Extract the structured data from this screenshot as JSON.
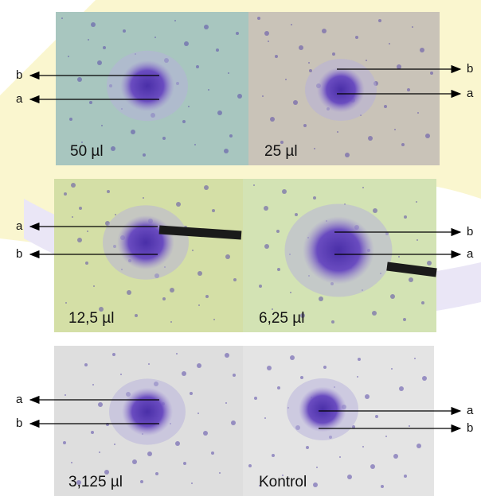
{
  "panels": [
    {
      "label": "50 µl",
      "arrows": [
        {
          "label": "b"
        },
        {
          "label": "a"
        }
      ]
    },
    {
      "label": "25 µl",
      "arrows": [
        {
          "label": "b"
        },
        {
          "label": "a"
        }
      ]
    },
    {
      "label": "12,5 µl",
      "arrows": [
        {
          "label": "a"
        },
        {
          "label": "b"
        }
      ]
    },
    {
      "label": "6,25 µl",
      "arrows": [
        {
          "label": "b"
        },
        {
          "label": "a"
        }
      ]
    },
    {
      "label": "3,125 µl",
      "arrows": [
        {
          "label": "a"
        },
        {
          "label": "b"
        }
      ]
    },
    {
      "label": "Kontrol",
      "arrows": [
        {
          "label": "a"
        },
        {
          "label": "b"
        }
      ]
    }
  ]
}
